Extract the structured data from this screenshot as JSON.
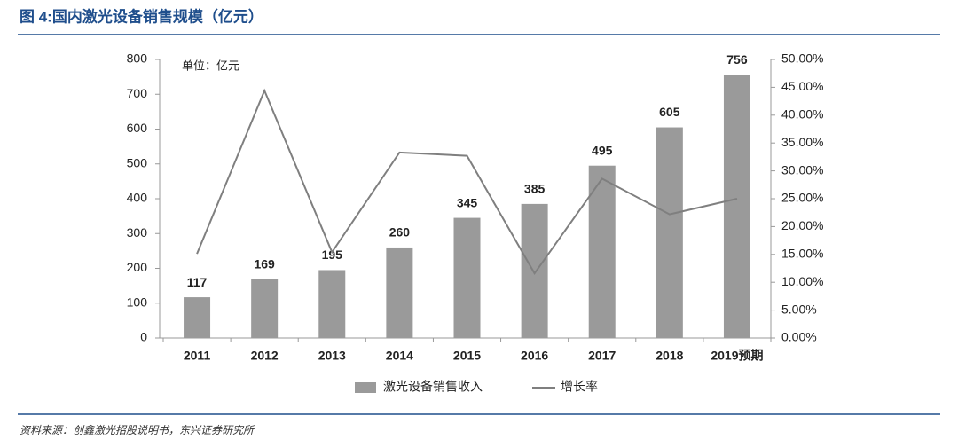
{
  "chart_data": {
    "type": "bar",
    "title": "图 4:国内激光设备销售规模（亿元）",
    "unit_note": "单位：亿元",
    "source": "资料来源：创鑫激光招股说明书，东兴证券研究所",
    "categories": [
      "2011",
      "2012",
      "2013",
      "2014",
      "2015",
      "2016",
      "2017",
      "2018",
      "2019预期"
    ],
    "series": [
      {
        "name": "激光设备销售收入",
        "type": "bar",
        "color": "#9a9a9a",
        "values": [
          117,
          169,
          195,
          260,
          345,
          385,
          495,
          605,
          756
        ]
      },
      {
        "name": "增长率",
        "type": "line",
        "axis": "y2",
        "color": "#7f7f7f",
        "values": [
          15.1,
          44.4,
          15.4,
          33.3,
          32.7,
          11.6,
          28.6,
          22.2,
          25.0
        ]
      }
    ],
    "ylim": [
      0,
      800
    ],
    "yticks": [
      0,
      100,
      200,
      300,
      400,
      500,
      600,
      700,
      800
    ],
    "y2lim": [
      0,
      50
    ],
    "y2ticks": [
      {
        "value": 0,
        "label": "0.00%"
      },
      {
        "value": 5,
        "label": "5.00%"
      },
      {
        "value": 10,
        "label": "10.00%"
      },
      {
        "value": 15,
        "label": "15.00%"
      },
      {
        "value": 20,
        "label": "20.00%"
      },
      {
        "value": 25,
        "label": "25.00%"
      },
      {
        "value": 30,
        "label": "30.00%"
      },
      {
        "value": 35,
        "label": "35.00%"
      },
      {
        "value": 40,
        "label": "40.00%"
      },
      {
        "value": 45,
        "label": "45.00%"
      },
      {
        "value": 50,
        "label": "50.00%"
      }
    ],
    "legend": "bottom"
  }
}
